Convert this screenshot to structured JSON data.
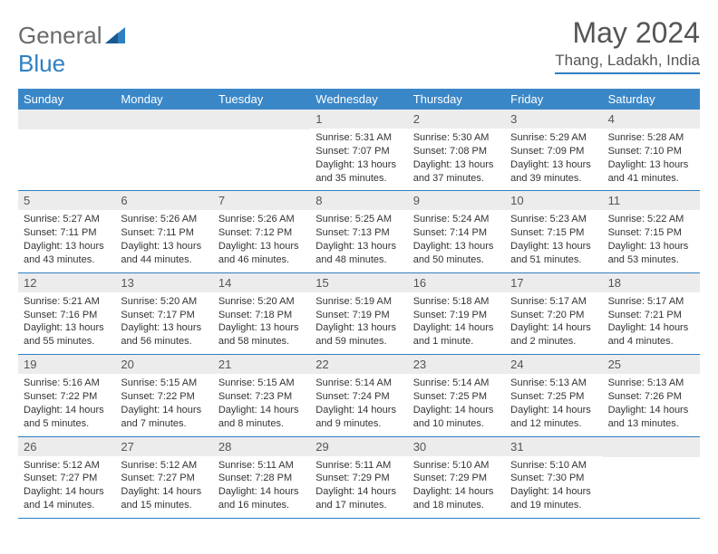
{
  "brand": {
    "prefix": "General",
    "suffix": "Blue"
  },
  "title": "May 2024",
  "location": "Thang, Ladakh, India",
  "header_color": "#3a87c8",
  "divider_color": "#2f7fc1",
  "num_bg": "#ececec",
  "text_color": "#333333",
  "day_names": [
    "Sunday",
    "Monday",
    "Tuesday",
    "Wednesday",
    "Thursday",
    "Friday",
    "Saturday"
  ],
  "weeks": [
    [
      null,
      null,
      null,
      {
        "n": "1",
        "sr": "5:31 AM",
        "ss": "7:07 PM",
        "dl": "13 hours and 35 minutes."
      },
      {
        "n": "2",
        "sr": "5:30 AM",
        "ss": "7:08 PM",
        "dl": "13 hours and 37 minutes."
      },
      {
        "n": "3",
        "sr": "5:29 AM",
        "ss": "7:09 PM",
        "dl": "13 hours and 39 minutes."
      },
      {
        "n": "4",
        "sr": "5:28 AM",
        "ss": "7:10 PM",
        "dl": "13 hours and 41 minutes."
      }
    ],
    [
      {
        "n": "5",
        "sr": "5:27 AM",
        "ss": "7:11 PM",
        "dl": "13 hours and 43 minutes."
      },
      {
        "n": "6",
        "sr": "5:26 AM",
        "ss": "7:11 PM",
        "dl": "13 hours and 44 minutes."
      },
      {
        "n": "7",
        "sr": "5:26 AM",
        "ss": "7:12 PM",
        "dl": "13 hours and 46 minutes."
      },
      {
        "n": "8",
        "sr": "5:25 AM",
        "ss": "7:13 PM",
        "dl": "13 hours and 48 minutes."
      },
      {
        "n": "9",
        "sr": "5:24 AM",
        "ss": "7:14 PM",
        "dl": "13 hours and 50 minutes."
      },
      {
        "n": "10",
        "sr": "5:23 AM",
        "ss": "7:15 PM",
        "dl": "13 hours and 51 minutes."
      },
      {
        "n": "11",
        "sr": "5:22 AM",
        "ss": "7:15 PM",
        "dl": "13 hours and 53 minutes."
      }
    ],
    [
      {
        "n": "12",
        "sr": "5:21 AM",
        "ss": "7:16 PM",
        "dl": "13 hours and 55 minutes."
      },
      {
        "n": "13",
        "sr": "5:20 AM",
        "ss": "7:17 PM",
        "dl": "13 hours and 56 minutes."
      },
      {
        "n": "14",
        "sr": "5:20 AM",
        "ss": "7:18 PM",
        "dl": "13 hours and 58 minutes."
      },
      {
        "n": "15",
        "sr": "5:19 AM",
        "ss": "7:19 PM",
        "dl": "13 hours and 59 minutes."
      },
      {
        "n": "16",
        "sr": "5:18 AM",
        "ss": "7:19 PM",
        "dl": "14 hours and 1 minute."
      },
      {
        "n": "17",
        "sr": "5:17 AM",
        "ss": "7:20 PM",
        "dl": "14 hours and 2 minutes."
      },
      {
        "n": "18",
        "sr": "5:17 AM",
        "ss": "7:21 PM",
        "dl": "14 hours and 4 minutes."
      }
    ],
    [
      {
        "n": "19",
        "sr": "5:16 AM",
        "ss": "7:22 PM",
        "dl": "14 hours and 5 minutes."
      },
      {
        "n": "20",
        "sr": "5:15 AM",
        "ss": "7:22 PM",
        "dl": "14 hours and 7 minutes."
      },
      {
        "n": "21",
        "sr": "5:15 AM",
        "ss": "7:23 PM",
        "dl": "14 hours and 8 minutes."
      },
      {
        "n": "22",
        "sr": "5:14 AM",
        "ss": "7:24 PM",
        "dl": "14 hours and 9 minutes."
      },
      {
        "n": "23",
        "sr": "5:14 AM",
        "ss": "7:25 PM",
        "dl": "14 hours and 10 minutes."
      },
      {
        "n": "24",
        "sr": "5:13 AM",
        "ss": "7:25 PM",
        "dl": "14 hours and 12 minutes."
      },
      {
        "n": "25",
        "sr": "5:13 AM",
        "ss": "7:26 PM",
        "dl": "14 hours and 13 minutes."
      }
    ],
    [
      {
        "n": "26",
        "sr": "5:12 AM",
        "ss": "7:27 PM",
        "dl": "14 hours and 14 minutes."
      },
      {
        "n": "27",
        "sr": "5:12 AM",
        "ss": "7:27 PM",
        "dl": "14 hours and 15 minutes."
      },
      {
        "n": "28",
        "sr": "5:11 AM",
        "ss": "7:28 PM",
        "dl": "14 hours and 16 minutes."
      },
      {
        "n": "29",
        "sr": "5:11 AM",
        "ss": "7:29 PM",
        "dl": "14 hours and 17 minutes."
      },
      {
        "n": "30",
        "sr": "5:10 AM",
        "ss": "7:29 PM",
        "dl": "14 hours and 18 minutes."
      },
      {
        "n": "31",
        "sr": "5:10 AM",
        "ss": "7:30 PM",
        "dl": "14 hours and 19 minutes."
      },
      null
    ]
  ],
  "labels": {
    "sunrise": "Sunrise:",
    "sunset": "Sunset:",
    "daylight": "Daylight:"
  }
}
